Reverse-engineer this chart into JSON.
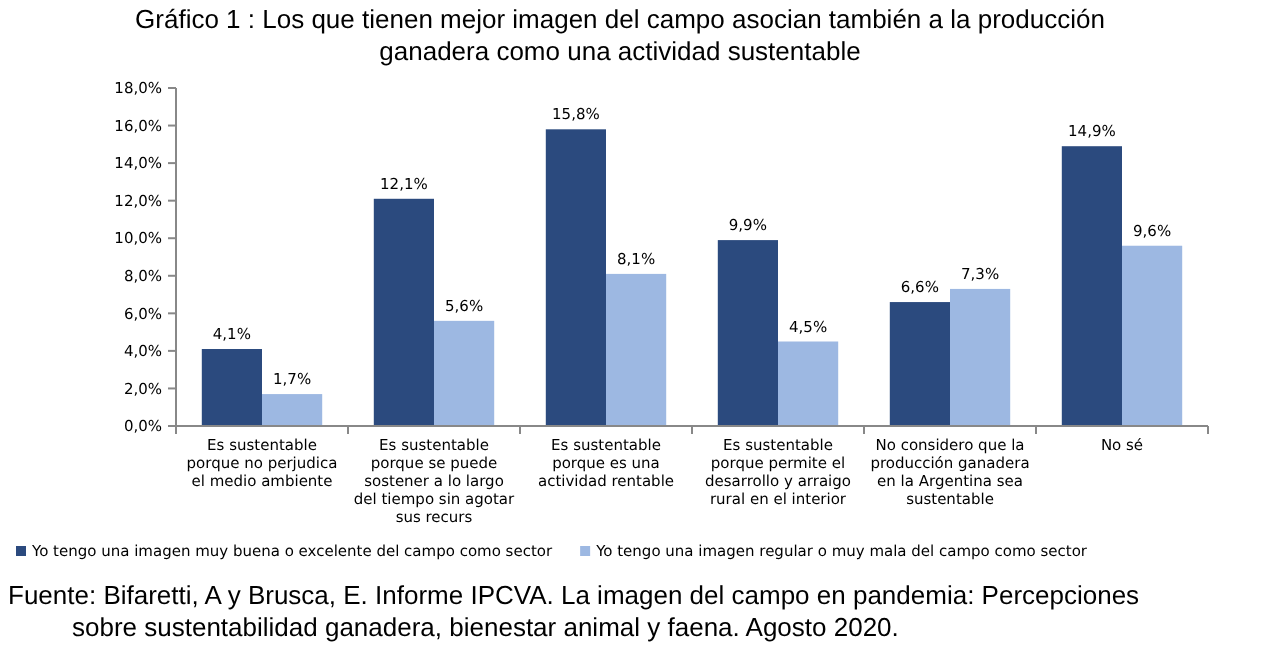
{
  "chart_data": {
    "type": "bar",
    "title": "Gráfico 1 : Los que tienen mejor imagen del campo asocian también a la producción ganadera como una actividad sustentable",
    "categories": [
      "Es sustentable porque no perjudica el medio ambiente",
      "Es sustentable porque se puede sostener a lo largo del tiempo sin agotar sus recurs",
      "Es sustentable porque es una actividad rentable",
      "Es sustentable porque permite el desarrollo y arraigo rural en el interior",
      "No considero que la producción ganadera en la Argentina sea sustentable",
      "No sé"
    ],
    "series": [
      {
        "name": "Yo tengo una imagen muy buena o excelente del campo como sector",
        "color": "#2b4a7e",
        "values": [
          4.1,
          12.1,
          15.8,
          9.9,
          6.6,
          14.9
        ],
        "value_labels": [
          "4,1%",
          "12,1%",
          "15,8%",
          "9,9%",
          "6,6%",
          "14,9%"
        ]
      },
      {
        "name": "Yo tengo una imagen regular o muy mala del campo como sector",
        "color": "#9db8e2",
        "values": [
          1.7,
          5.6,
          8.1,
          4.5,
          7.3,
          9.6
        ],
        "value_labels": [
          "1,7%",
          "5,6%",
          "8,1%",
          "4,5%",
          "7,3%",
          "9,6%"
        ]
      }
    ],
    "ylim": [
      0,
      18
    ],
    "yticks": [
      {
        "value": 0,
        "label": "0,0%"
      },
      {
        "value": 2,
        "label": "2,0%"
      },
      {
        "value": 4,
        "label": "4,0%"
      },
      {
        "value": 6,
        "label": "6,0%"
      },
      {
        "value": 8,
        "label": "8,0%"
      },
      {
        "value": 10,
        "label": "10,0%"
      },
      {
        "value": 12,
        "label": "12,0%"
      },
      {
        "value": 14,
        "label": "14,0%"
      },
      {
        "value": 16,
        "label": "16,0%"
      },
      {
        "value": 18,
        "label": "18,0%"
      }
    ],
    "grid": false,
    "legend": "bottom",
    "annotations": [
      "Fuente: Bifaretti, A y Brusca, E. Informe IPCVA. La imagen del campo en pandemia: Percepciones sobre sustentabilidad ganadera, bienestar animal y faena. Agosto 2020."
    ]
  }
}
